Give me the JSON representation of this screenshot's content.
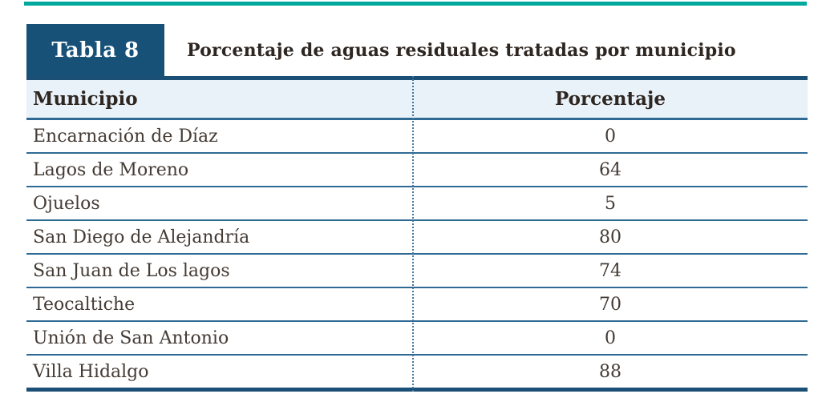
{
  "table_header": {
    "label": "Tabla 8",
    "title": "Porcentaje de aguas residuales tratadas por municipio"
  },
  "chart_data": {
    "type": "table",
    "title": "Porcentaje de aguas residuales tratadas por municipio",
    "columns": [
      "Municipio",
      "Porcentaje"
    ],
    "rows": [
      {
        "municipio": "Encarnación de Díaz",
        "porcentaje": "0"
      },
      {
        "municipio": "Lagos de Moreno",
        "porcentaje": "64"
      },
      {
        "municipio": "Ojuelos",
        "porcentaje": "5"
      },
      {
        "municipio": "San Diego de Alejandría",
        "porcentaje": "80"
      },
      {
        "municipio": "San Juan de Los lagos",
        "porcentaje": "74"
      },
      {
        "municipio": "Teocaltiche",
        "porcentaje": "70"
      },
      {
        "municipio": "Unión de San Antonio",
        "porcentaje": "0"
      },
      {
        "municipio": "Villa Hidalgo",
        "porcentaje": "88"
      }
    ]
  },
  "colors": {
    "accent_teal": "#00a89d",
    "label_box_blue": "#175178",
    "table_border_dark": "#1b4f75",
    "row_line_blue": "#2f6a94",
    "divider_dot_blue": "#4179a3",
    "header_row_bg": "#e9f1f9",
    "heading_text": "#2e2621",
    "body_text": "#443b34"
  }
}
